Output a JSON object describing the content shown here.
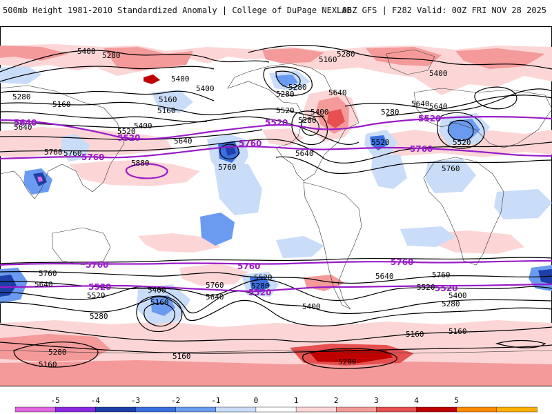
{
  "header": {
    "title": "500mb Height 1981-2010 Standardized Anomaly | College of DuPage NEXLAB",
    "run_info": "06Z GFS | F282 Valid: 00Z FRI NOV 28 2025"
  },
  "colorbar": {
    "ticks": [
      "-5",
      "-4",
      "-3",
      "-2",
      "-1",
      "0",
      "1",
      "2",
      "3",
      "4",
      "5"
    ],
    "colors": [
      "#e066e0",
      "#8a2be2",
      "#1e3fa8",
      "#3a6fe0",
      "#6a9bf0",
      "#c9dcf8",
      "#ffffff",
      "#fcd6d6",
      "#f59a9a",
      "#e65050",
      "#c00000",
      "#ff8c00",
      "#ffb000"
    ]
  },
  "contour_labels_black": [
    {
      "text": "5400"
    },
    {
      "text": "5280"
    },
    {
      "text": "5160"
    },
    {
      "text": "5280"
    },
    {
      "text": "5160"
    },
    {
      "text": "5160"
    },
    {
      "text": "5400"
    },
    {
      "text": "5280"
    },
    {
      "text": "5160"
    },
    {
      "text": "5280"
    },
    {
      "text": "5400"
    },
    {
      "text": "5280"
    },
    {
      "text": "5400"
    },
    {
      "text": "5520"
    },
    {
      "text": "5520"
    },
    {
      "text": "5640"
    },
    {
      "text": "5640"
    },
    {
      "text": "5760"
    },
    {
      "text": "5640"
    },
    {
      "text": "5640"
    },
    {
      "text": "5520"
    },
    {
      "text": "5520"
    },
    {
      "text": "5400"
    },
    {
      "text": "5280"
    },
    {
      "text": "5400"
    },
    {
      "text": "5280"
    },
    {
      "text": "5640"
    },
    {
      "text": "5760"
    },
    {
      "text": "5880"
    },
    {
      "text": "5760"
    },
    {
      "text": "5760"
    },
    {
      "text": "5640"
    },
    {
      "text": "5520"
    },
    {
      "text": "5400"
    },
    {
      "text": "5160"
    },
    {
      "text": "5280"
    },
    {
      "text": "5280"
    },
    {
      "text": "5160"
    },
    {
      "text": "5160"
    },
    {
      "text": "5760"
    },
    {
      "text": "5640"
    },
    {
      "text": "5520"
    },
    {
      "text": "5280"
    },
    {
      "text": "5400"
    },
    {
      "text": "5640"
    },
    {
      "text": "5760"
    },
    {
      "text": "5520"
    },
    {
      "text": "5400"
    },
    {
      "text": "5280"
    },
    {
      "text": "5160"
    },
    {
      "text": "5160"
    },
    {
      "text": "5280"
    },
    {
      "text": "5640"
    },
    {
      "text": "5760"
    }
  ],
  "contour_labels_purple": [
    {
      "text": "5640"
    },
    {
      "text": "5520"
    },
    {
      "text": "5520"
    },
    {
      "text": "5520"
    },
    {
      "text": "5760"
    },
    {
      "text": "5760"
    },
    {
      "text": "5760"
    },
    {
      "text": "5760"
    },
    {
      "text": "5760"
    },
    {
      "text": "5760"
    },
    {
      "text": "5520"
    },
    {
      "text": "5520"
    },
    {
      "text": "5520"
    }
  ]
}
